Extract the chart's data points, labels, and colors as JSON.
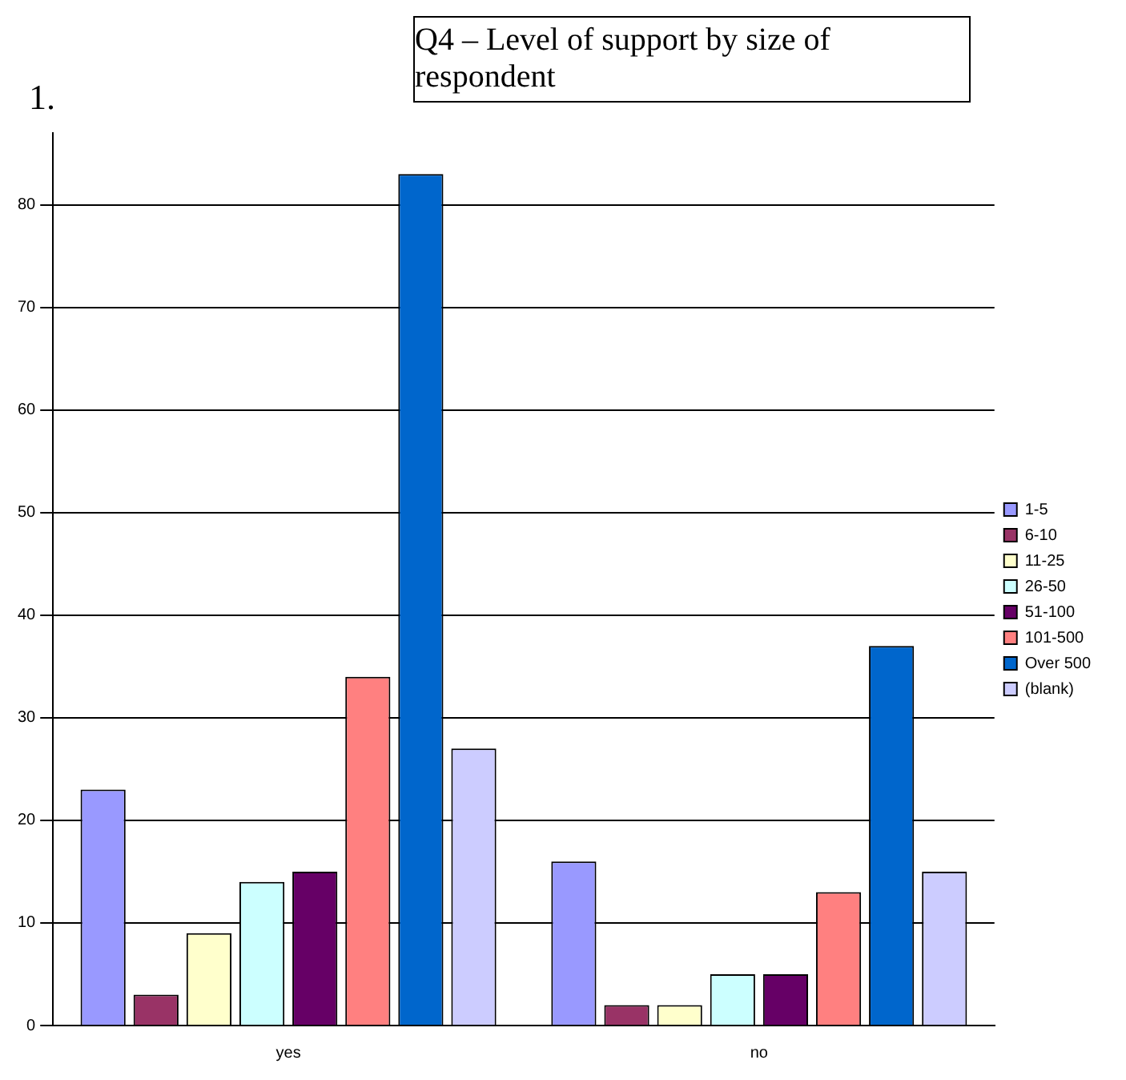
{
  "chart_data": {
    "type": "bar",
    "title": "Q4 – Level of support by size of respondent",
    "annotations": [
      "1."
    ],
    "categories": [
      "yes",
      "no"
    ],
    "series": [
      {
        "name": "1-5",
        "color": "#9999ff",
        "values": [
          23,
          16
        ]
      },
      {
        "name": "6-10",
        "color": "#993366",
        "values": [
          3,
          2
        ]
      },
      {
        "name": "11-25",
        "color": "#ffffcc",
        "values": [
          9,
          2
        ]
      },
      {
        "name": "26-50",
        "color": "#ccffff",
        "values": [
          14,
          5
        ]
      },
      {
        "name": "51-100",
        "color": "#660066",
        "values": [
          15,
          5
        ]
      },
      {
        "name": "101-500",
        "color": "#ff8080",
        "values": [
          34,
          13
        ]
      },
      {
        "name": "Over 500",
        "color": "#0066cc",
        "values": [
          83,
          37
        ]
      },
      {
        "name": "(blank)",
        "color": "#ccccff",
        "values": [
          27,
          15
        ]
      }
    ],
    "ylim": [
      0,
      87
    ],
    "yticks": [
      0,
      10,
      20,
      30,
      40,
      50,
      60,
      70,
      80
    ],
    "grid": "y",
    "legend": "right"
  }
}
